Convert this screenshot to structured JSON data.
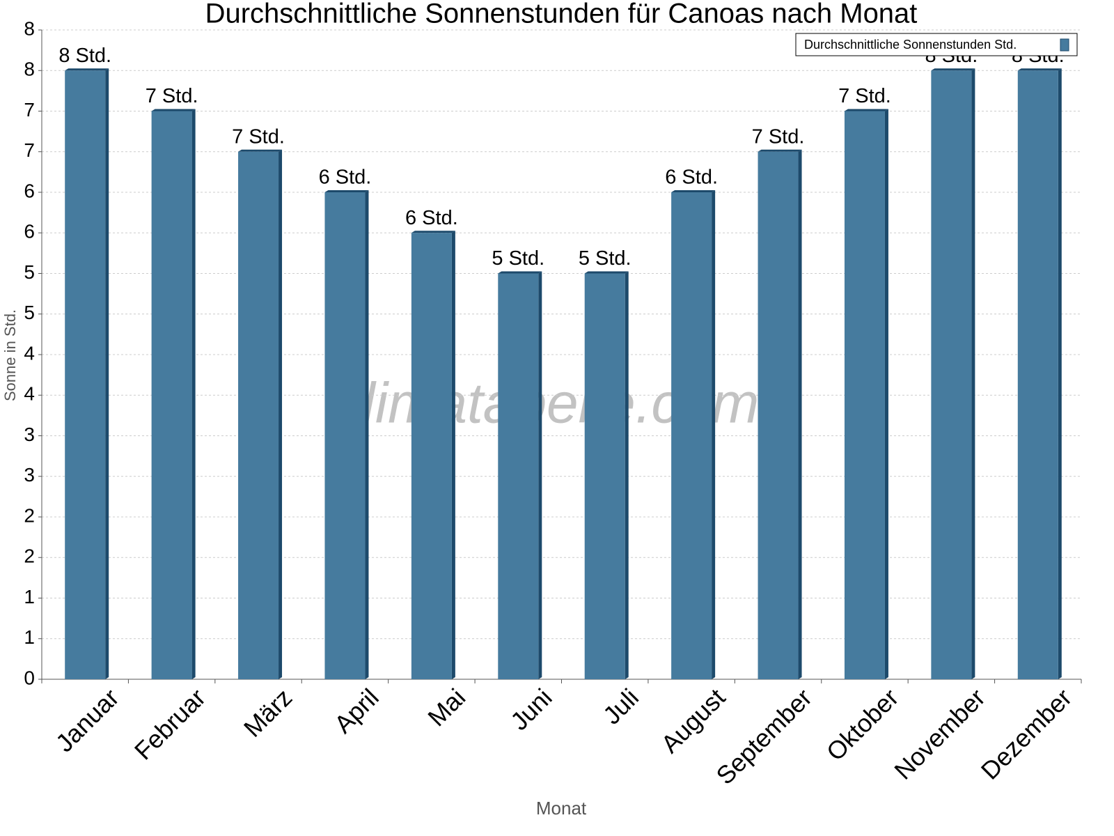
{
  "chart_data": {
    "type": "bar",
    "title": "Durchschnittliche Sonnenstunden für Canoas nach Monat",
    "x_label": "Monat",
    "y_label": "Sonne in Std.",
    "watermark": "klimatabelle.com",
    "categories": [
      "Januar",
      "Februar",
      "März",
      "April",
      "Mai",
      "Juni",
      "Juli",
      "August",
      "September",
      "Oktober",
      "November",
      "Dezember"
    ],
    "series": [
      {
        "name": "Durchschnittliche Sonnenstunden Std.",
        "color": "#467b9e",
        "values": [
          7.5,
          7,
          6.5,
          6,
          5.5,
          5,
          5,
          6,
          6.5,
          7,
          7.5,
          7.5
        ],
        "value_labels": [
          "8 Std.",
          "7 Std.",
          "7 Std.",
          "6 Std.",
          "6 Std.",
          "5 Std.",
          "5 Std.",
          "6 Std.",
          "7 Std.",
          "7 Std.",
          "8 Std.",
          "8 Std."
        ]
      }
    ],
    "ylim": [
      0,
      8
    ],
    "yticks": [
      0,
      {
        "value": 0.5,
        "label": "1"
      },
      1,
      {
        "value": 1.5,
        "label": "2"
      },
      2,
      {
        "value": 2.5,
        "label": "3"
      },
      3,
      {
        "value": 3.5,
        "label": "4"
      },
      4,
      {
        "value": 4.5,
        "label": "5"
      },
      5,
      {
        "value": 5.5,
        "label": "6"
      },
      6,
      {
        "value": 6.5,
        "label": "7"
      },
      7,
      {
        "value": 7.5,
        "label": "8"
      },
      8
    ],
    "grid": true,
    "legend": "top-right"
  }
}
